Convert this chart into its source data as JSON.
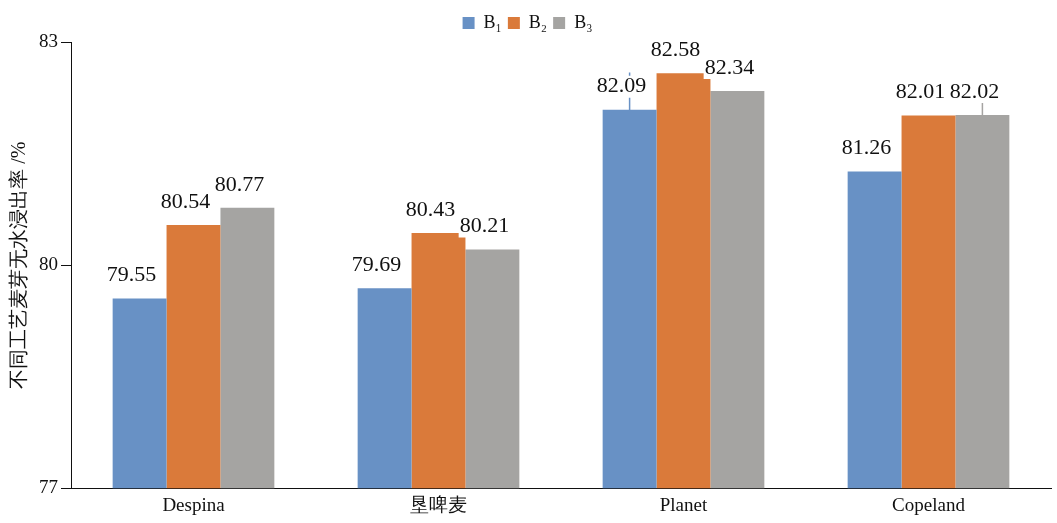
{
  "chart_data": {
    "type": "bar",
    "ylabel": "不同工艺麦芽无水浸出率 /%",
    "categories": [
      "Despina",
      "垦啤麦",
      "Planet",
      "Copeland"
    ],
    "series": [
      {
        "name": "B₁",
        "color": "#6891c5",
        "values": [
          79.55,
          79.69,
          82.09,
          81.26
        ],
        "errors": [
          null,
          null,
          0.5,
          null
        ]
      },
      {
        "name": "B₂",
        "color": "#da7a3a",
        "values": [
          80.54,
          80.43,
          82.58,
          82.01
        ]
      },
      {
        "name": "B₃",
        "color": "#a5a4a2",
        "values": [
          80.77,
          80.21,
          82.34,
          82.02
        ],
        "errors": [
          null,
          null,
          null,
          0.19
        ]
      }
    ],
    "ylim": [
      77,
      83
    ],
    "yticks": [
      77,
      80,
      83
    ],
    "grid": false,
    "legend": "top",
    "data_labels": true
  }
}
